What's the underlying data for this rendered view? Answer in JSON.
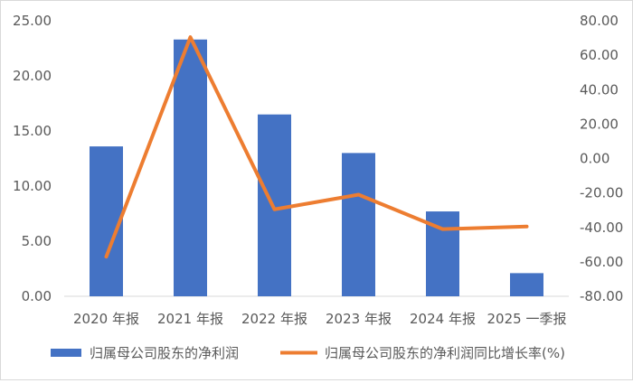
{
  "chart_data": {
    "type": "bar+line",
    "categories": [
      "2020 年报",
      "2021 年报",
      "2022 年报",
      "2023 年报",
      "2024 年报",
      "2025 一季报"
    ],
    "series": [
      {
        "name": "归属母公司股东的净利润",
        "type": "bar",
        "axis": "left",
        "color": "#4472C4",
        "values": [
          13.6,
          23.3,
          16.5,
          13.0,
          7.7,
          2.1
        ]
      },
      {
        "name": "归属母公司股东的净利润同比增长率(%)",
        "type": "line",
        "axis": "right",
        "color": "#ED7D31",
        "values": [
          -57.0,
          70.5,
          -29.5,
          -21.0,
          -41.0,
          -39.5
        ]
      }
    ],
    "y_left": {
      "min": 0,
      "max": 25,
      "step": 5,
      "tick_labels": [
        "0.00",
        "5.00",
        "10.00",
        "15.00",
        "20.00",
        "25.00"
      ]
    },
    "y_right": {
      "min": -80,
      "max": 80,
      "step": 20,
      "tick_labels": [
        "-80.00",
        "-60.00",
        "-40.00",
        "-20.00",
        "0.00",
        "20.00",
        "40.00",
        "60.00",
        "80.00"
      ]
    },
    "grid": false,
    "legend_position": "bottom"
  }
}
